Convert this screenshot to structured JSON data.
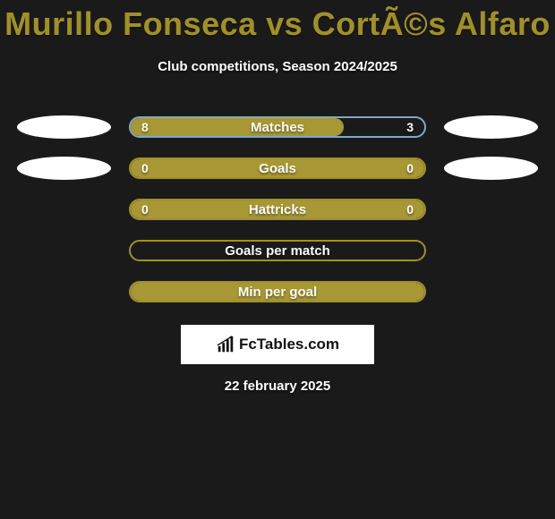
{
  "title": "Murillo Fonseca vs CortÃ©s Alfaro",
  "subtitle": "Club competitions, Season 2024/2025",
  "date": "22 february 2025",
  "brand": {
    "text": "FcTables.com"
  },
  "colors": {
    "accent": "#a09029",
    "accent_fill": "#a79735",
    "border": "#a09029",
    "empty_left_fill": "#a79735"
  },
  "rows": [
    {
      "label": "Matches",
      "left_value": "8",
      "right_value": "3",
      "left_placeholder": true,
      "right_placeholder": true,
      "left_fill_pct": 72.7,
      "fill_color": "#a79735",
      "border_color": "#84a8c0"
    },
    {
      "label": "Goals",
      "left_value": "0",
      "right_value": "0",
      "left_placeholder": true,
      "right_placeholder": true,
      "left_fill_pct": 100,
      "fill_color": "#a79735",
      "border_color": "#a09029"
    },
    {
      "label": "Hattricks",
      "left_value": "0",
      "right_value": "0",
      "left_placeholder": false,
      "right_placeholder": false,
      "left_fill_pct": 100,
      "fill_color": "#a79735",
      "border_color": "#a09029"
    },
    {
      "label": "Goals per match",
      "left_value": "",
      "right_value": "",
      "left_placeholder": false,
      "right_placeholder": false,
      "left_fill_pct": 0,
      "fill_color": "transparent",
      "border_color": "#a09029"
    },
    {
      "label": "Min per goal",
      "left_value": "",
      "right_value": "",
      "left_placeholder": false,
      "right_placeholder": false,
      "left_fill_pct": 100,
      "fill_color": "#a79735",
      "border_color": "#a09029"
    }
  ]
}
